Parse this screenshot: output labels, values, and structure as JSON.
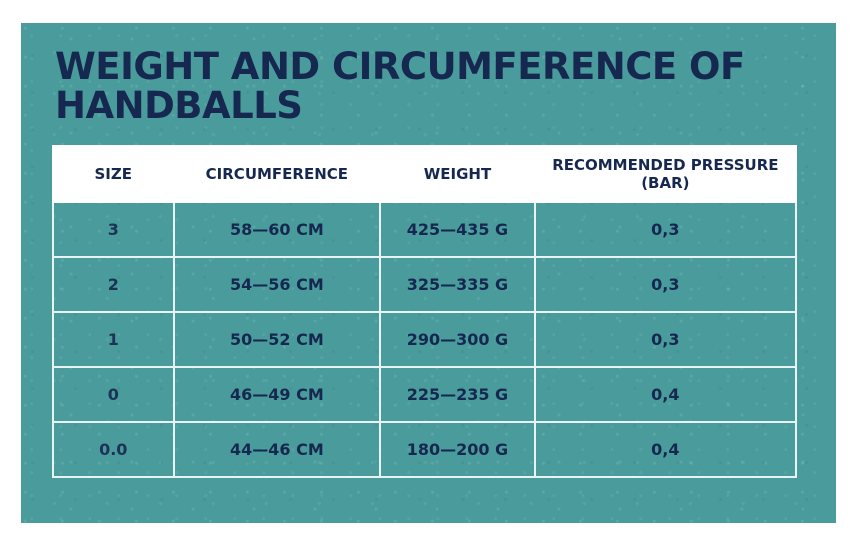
{
  "title": {
    "line1": "WEIGHT AND CIRCUMFERENCE OF",
    "line2": "HANDBALLS"
  },
  "table": {
    "headers": {
      "size": "SIZE",
      "circumference": "CIRCUMFERENCE",
      "weight": "WEIGHT",
      "pressure_line1": "RECOMMENDED PRESSURE",
      "pressure_line2": "(BAR)"
    },
    "rows": [
      {
        "size": "3",
        "circumference": "58—60 CM",
        "weight": "425—435 G",
        "pressure": "0,3"
      },
      {
        "size": "2",
        "circumference": "54—56 CM",
        "weight": "325—335 G",
        "pressure": "0,3"
      },
      {
        "size": "1",
        "circumference": "50—52 CM",
        "weight": "290—300 G",
        "pressure": "0,3"
      },
      {
        "size": "0",
        "circumference": "46—49 CM",
        "weight": "225—235 G",
        "pressure": "0,4"
      },
      {
        "size": "0.0",
        "circumference": "44—46 CM",
        "weight": "180—200 G",
        "pressure": "0,4"
      }
    ]
  },
  "colors": {
    "background": "#4a9c9c",
    "text": "#16284f",
    "header_background": "#ffffff"
  }
}
